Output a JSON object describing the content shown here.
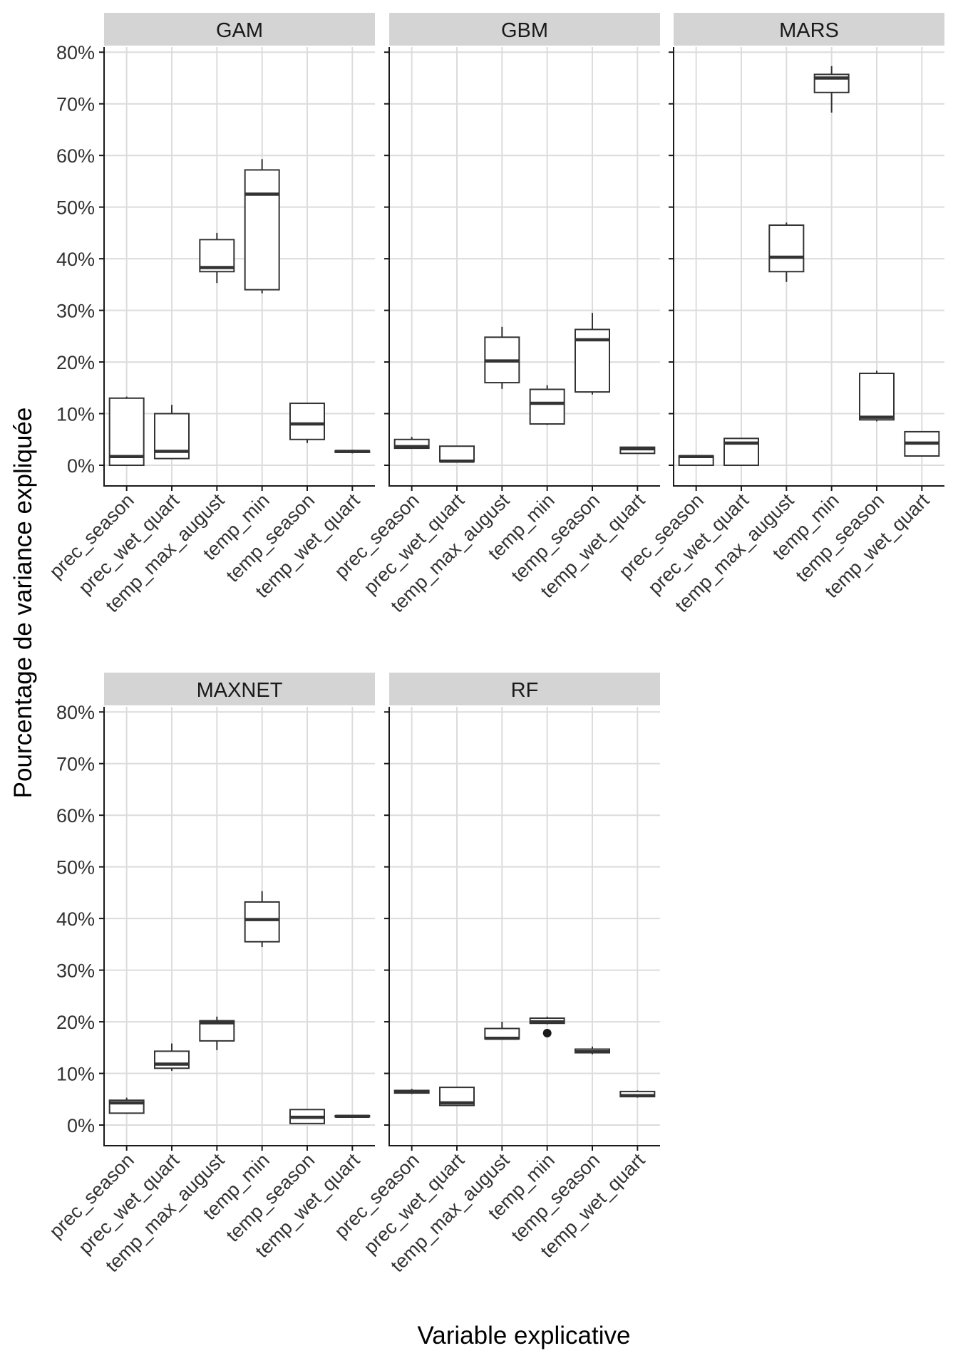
{
  "chart_data": {
    "type": "boxplot",
    "layout": "faceted-grid",
    "xlabel": "Variable explicative",
    "ylabel": "Pourcentage de variance expliquée",
    "ylim": [
      -0.04,
      0.81
    ],
    "yticks": [
      0,
      0.1,
      0.2,
      0.3,
      0.4,
      0.5,
      0.6,
      0.7,
      0.8
    ],
    "ytick_labels": [
      "0%",
      "10%",
      "20%",
      "30%",
      "40%",
      "50%",
      "60%",
      "70%",
      "80%"
    ],
    "categories": [
      "prec_season",
      "prec_wet_quart",
      "temp_max_august",
      "temp_min",
      "temp_season",
      "temp_wet_quart"
    ],
    "panels": [
      {
        "title": "GAM",
        "boxes": [
          {
            "min": 0.0,
            "q1": 0.0,
            "median": 0.017,
            "q3": 0.13,
            "max": 0.133
          },
          {
            "min": 0.013,
            "q1": 0.013,
            "median": 0.027,
            "q3": 0.1,
            "max": 0.117
          },
          {
            "min": 0.353,
            "q1": 0.375,
            "median": 0.383,
            "q3": 0.437,
            "max": 0.45
          },
          {
            "min": 0.333,
            "q1": 0.34,
            "median": 0.525,
            "q3": 0.572,
            "max": 0.593
          },
          {
            "min": 0.043,
            "q1": 0.05,
            "median": 0.08,
            "q3": 0.12,
            "max": 0.12
          },
          {
            "min": 0.023,
            "q1": 0.025,
            "median": 0.027,
            "q3": 0.028,
            "max": 0.03
          }
        ]
      },
      {
        "title": "GBM",
        "boxes": [
          {
            "min": 0.032,
            "q1": 0.033,
            "median": 0.036,
            "q3": 0.05,
            "max": 0.055
          },
          {
            "min": 0.007,
            "q1": 0.007,
            "median": 0.008,
            "q3": 0.037,
            "max": 0.037
          },
          {
            "min": 0.148,
            "q1": 0.16,
            "median": 0.202,
            "q3": 0.248,
            "max": 0.268
          },
          {
            "min": 0.078,
            "q1": 0.08,
            "median": 0.12,
            "q3": 0.147,
            "max": 0.155
          },
          {
            "min": 0.137,
            "q1": 0.142,
            "median": 0.243,
            "q3": 0.263,
            "max": 0.295
          },
          {
            "min": 0.023,
            "q1": 0.023,
            "median": 0.032,
            "q3": 0.035,
            "max": 0.035
          }
        ]
      },
      {
        "title": "MARS",
        "boxes": [
          {
            "min": 0.0,
            "q1": 0.0,
            "median": 0.017,
            "q3": 0.018,
            "max": 0.018
          },
          {
            "min": 0.0,
            "q1": 0.0,
            "median": 0.043,
            "q3": 0.052,
            "max": 0.052
          },
          {
            "min": 0.355,
            "q1": 0.375,
            "median": 0.403,
            "q3": 0.465,
            "max": 0.47
          },
          {
            "min": 0.683,
            "q1": 0.722,
            "median": 0.75,
            "q3": 0.757,
            "max": 0.773
          },
          {
            "min": 0.085,
            "q1": 0.088,
            "median": 0.093,
            "q3": 0.178,
            "max": 0.183
          },
          {
            "min": 0.018,
            "q1": 0.018,
            "median": 0.043,
            "q3": 0.065,
            "max": 0.065
          }
        ]
      },
      {
        "title": "MAXNET",
        "boxes": [
          {
            "min": 0.023,
            "q1": 0.023,
            "median": 0.043,
            "q3": 0.048,
            "max": 0.053
          },
          {
            "min": 0.105,
            "q1": 0.11,
            "median": 0.118,
            "q3": 0.143,
            "max": 0.158
          },
          {
            "min": 0.145,
            "q1": 0.163,
            "median": 0.198,
            "q3": 0.202,
            "max": 0.21
          },
          {
            "min": 0.345,
            "q1": 0.355,
            "median": 0.398,
            "q3": 0.432,
            "max": 0.453
          },
          {
            "min": 0.003,
            "q1": 0.003,
            "median": 0.015,
            "q3": 0.03,
            "max": 0.03
          },
          {
            "min": 0.015,
            "q1": 0.016,
            "median": 0.017,
            "q3": 0.018,
            "max": 0.019
          }
        ]
      },
      {
        "title": "RF",
        "boxes": [
          {
            "min": 0.06,
            "q1": 0.062,
            "median": 0.065,
            "q3": 0.067,
            "max": 0.07
          },
          {
            "min": 0.037,
            "q1": 0.038,
            "median": 0.043,
            "q3": 0.073,
            "max": 0.073
          },
          {
            "min": 0.165,
            "q1": 0.167,
            "median": 0.168,
            "q3": 0.187,
            "max": 0.2
          },
          {
            "min": 0.195,
            "q1": 0.197,
            "median": 0.2,
            "q3": 0.207,
            "max": 0.21,
            "outliers": [
              0.178
            ]
          },
          {
            "min": 0.137,
            "q1": 0.14,
            "median": 0.142,
            "q3": 0.147,
            "max": 0.152
          },
          {
            "min": 0.053,
            "q1": 0.055,
            "median": 0.057,
            "q3": 0.065,
            "max": 0.067
          }
        ]
      }
    ]
  }
}
